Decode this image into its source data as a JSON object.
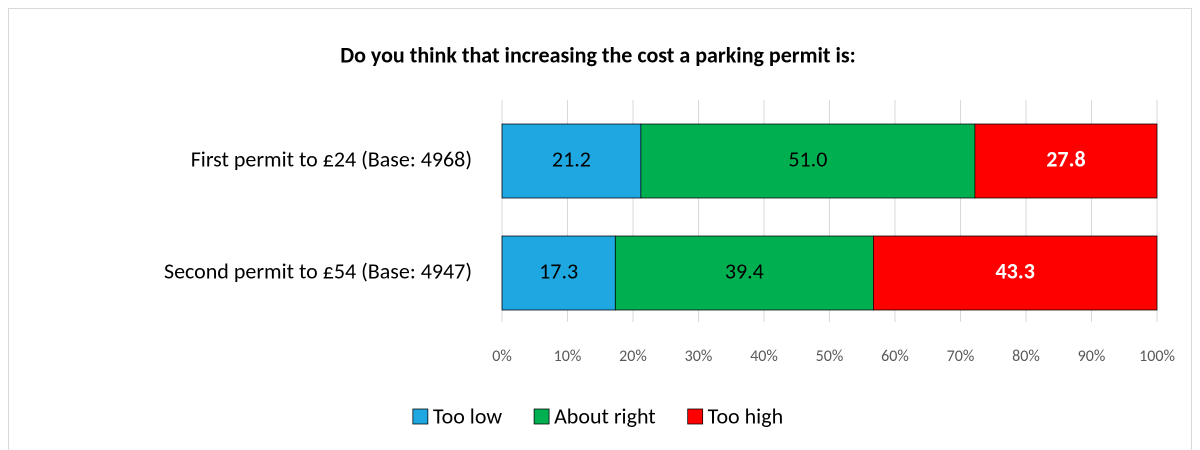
{
  "chart_data": {
    "type": "stacked_bar_horizontal",
    "title": "Do you think that increasing the cost  a parking permit is:",
    "categories": [
      "First permit to £24 (Base: 4968)",
      "Second permit to £54 (Base: 4947)"
    ],
    "series": [
      {
        "name": "Too low",
        "color": "#1ea7e1",
        "values": [
          21.2,
          17.3
        ]
      },
      {
        "name": "About right",
        "color": "#00b050",
        "values": [
          51.0,
          39.4
        ],
        "value_labels": [
          "51.0",
          "39.4"
        ]
      },
      {
        "name": "Too high",
        "color": "#ff0000",
        "values": [
          27.8,
          43.3
        ]
      }
    ],
    "xlim": [
      0,
      100
    ],
    "xticks": [
      {
        "value": 0,
        "label": "0%"
      },
      {
        "value": 10,
        "label": "10%"
      },
      {
        "value": 20,
        "label": "20%"
      },
      {
        "value": 30,
        "label": "30%"
      },
      {
        "value": 40,
        "label": "40%"
      },
      {
        "value": 50,
        "label": "50%"
      },
      {
        "value": 60,
        "label": "60%"
      },
      {
        "value": 70,
        "label": "70%"
      },
      {
        "value": 80,
        "label": "80%"
      },
      {
        "value": 90,
        "label": "90%"
      },
      {
        "value": 100,
        "label": "100%"
      }
    ],
    "grid": true,
    "legend": "bottom"
  }
}
